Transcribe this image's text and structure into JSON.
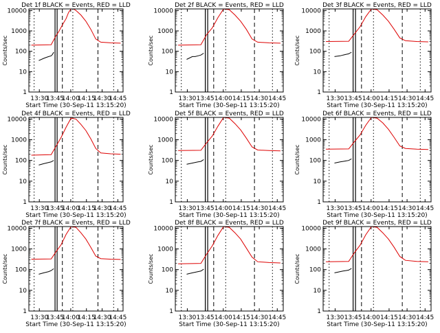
{
  "chart_data": {
    "type": "line",
    "yscale": "log",
    "ylim": [
      1,
      12000
    ],
    "x_units": "minutes after 13:00 UT",
    "xlim": [
      19,
      57
    ],
    "x_tick_values": [
      30,
      45,
      60,
      75,
      90,
      105
    ],
    "x_tick_labels": [
      "13:30",
      "13:45",
      "14:00",
      "14:15",
      "14:30",
      "14:45"
    ],
    "y_tick_values": [
      1,
      10,
      100,
      1000,
      10000
    ],
    "y_tick_labels": [
      "1",
      "10",
      "100",
      "1000",
      "10000"
    ],
    "ylabel": "Counts/sec",
    "xlabel": "Start Time (30-Sep-11 13:15:20)",
    "colors": {
      "events": "#000000",
      "lld": "#dd0000",
      "axes": "#000000"
    },
    "grid": false,
    "markers": {
      "dotted": [
        13,
        36.5,
        54
      ],
      "solid": [
        29.5,
        31.5,
        33
      ],
      "dashed": [
        35,
        46
      ]
    },
    "panels": [
      {
        "title": "Det 1f BLACK = Events, RED = LLD",
        "events": {
          "x": [
            23,
            25,
            26,
            27,
            28,
            28.5,
            29
          ],
          "y": [
            35,
            45,
            50,
            55,
            60,
            70,
            90
          ]
        },
        "lld": {
          "x": [
            20,
            28,
            30,
            31,
            32,
            33,
            34,
            35,
            36,
            37,
            38,
            40,
            42,
            44,
            46,
            48,
            52,
            56
          ],
          "y": [
            200,
            210,
            600,
            900,
            1500,
            2500,
            4000,
            8000,
            12000,
            12000,
            10000,
            6000,
            3000,
            1200,
            400,
            280,
            260,
            250
          ]
        }
      },
      {
        "title": "Det 2f BLACK = Events, RED = LLD",
        "events": {
          "x": [
            23,
            25,
            26,
            27,
            28,
            29
          ],
          "y": [
            40,
            55,
            55,
            60,
            65,
            80
          ]
        },
        "lld": {
          "x": [
            20,
            28,
            30,
            32,
            34,
            36,
            38,
            40,
            42,
            44,
            46,
            48,
            52,
            56
          ],
          "y": [
            200,
            210,
            650,
            1400,
            4500,
            12000,
            11000,
            6000,
            3000,
            1200,
            400,
            280,
            260,
            250
          ]
        }
      },
      {
        "title": "Det 3f BLACK = Events, RED = LLD",
        "events": {
          "x": [
            23,
            25,
            26,
            27,
            28,
            29
          ],
          "y": [
            55,
            60,
            65,
            70,
            75,
            90
          ]
        },
        "lld": {
          "x": [
            20,
            28,
            30,
            32,
            34,
            36,
            38,
            40,
            42,
            44,
            46,
            48,
            52,
            56
          ],
          "y": [
            300,
            310,
            700,
            1600,
            5000,
            12000,
            11000,
            6000,
            3000,
            1200,
            450,
            330,
            300,
            290
          ]
        }
      },
      {
        "title": "Det 4f BLACK = Events, RED = LLD",
        "events": {
          "x": [
            23,
            25,
            26,
            27,
            28,
            29
          ],
          "y": [
            60,
            70,
            75,
            80,
            85,
            100
          ]
        },
        "lld": {
          "x": [
            20,
            28,
            30,
            32,
            34,
            36,
            38,
            40,
            42,
            44,
            46,
            48,
            52,
            56
          ],
          "y": [
            180,
            190,
            500,
            1300,
            4000,
            11000,
            10000,
            5500,
            2800,
            1100,
            380,
            230,
            210,
            200
          ]
        }
      },
      {
        "title": "Det 5f BLACK = Events, RED = LLD",
        "events": {
          "x": [
            23,
            25,
            26,
            27,
            28,
            29
          ],
          "y": [
            65,
            75,
            80,
            85,
            90,
            110
          ]
        },
        "lld": {
          "x": [
            20,
            28,
            30,
            32,
            34,
            36,
            38,
            40,
            42,
            44,
            46,
            48,
            52,
            56
          ],
          "y": [
            300,
            310,
            700,
            1500,
            4500,
            12000,
            11000,
            6000,
            3000,
            1200,
            450,
            320,
            300,
            290
          ]
        }
      },
      {
        "title": "Det 6f BLACK = Events, RED = LLD",
        "events": {
          "x": [
            23,
            25,
            26,
            27,
            28,
            29
          ],
          "y": [
            75,
            85,
            90,
            95,
            100,
            120
          ]
        },
        "lld": {
          "x": [
            20,
            28,
            30,
            32,
            34,
            36,
            38,
            40,
            42,
            44,
            46,
            48,
            52,
            56
          ],
          "y": [
            350,
            360,
            800,
            1700,
            5000,
            12000,
            11000,
            6500,
            3200,
            1300,
            500,
            380,
            350,
            340
          ]
        }
      },
      {
        "title": "Det 7f BLACK = Events, RED = LLD",
        "events": {
          "x": [
            23,
            25,
            26,
            27,
            28,
            29
          ],
          "y": [
            60,
            70,
            75,
            80,
            90,
            110
          ]
        },
        "lld": {
          "x": [
            20,
            28,
            30,
            32,
            34,
            36,
            38,
            40,
            42,
            44,
            46,
            48,
            52,
            56
          ],
          "y": [
            320,
            330,
            750,
            1600,
            5000,
            12000,
            11000,
            6000,
            3000,
            1200,
            450,
            340,
            320,
            310
          ]
        }
      },
      {
        "title": "Det 8f BLACK = Events, RED = LLD",
        "events": {
          "x": [
            23,
            25,
            26,
            27,
            28,
            29
          ],
          "y": [
            60,
            70,
            75,
            80,
            85,
            105
          ]
        },
        "lld": {
          "x": [
            20,
            28,
            30,
            32,
            34,
            36,
            38,
            40,
            42,
            44,
            46,
            48,
            52,
            56
          ],
          "y": [
            190,
            200,
            550,
            1400,
            4500,
            12000,
            11000,
            6000,
            3000,
            1100,
            400,
            240,
            220,
            210
          ]
        }
      },
      {
        "title": "Det 9f BLACK = Events, RED = LLD",
        "events": {
          "x": [
            23,
            25,
            26,
            27,
            28,
            29
          ],
          "y": [
            70,
            80,
            85,
            90,
            95,
            115
          ]
        },
        "lld": {
          "x": [
            20,
            28,
            30,
            32,
            34,
            36,
            38,
            40,
            42,
            44,
            46,
            48,
            52,
            56
          ],
          "y": [
            240,
            250,
            650,
            1500,
            4800,
            12000,
            11000,
            6000,
            3000,
            1200,
            430,
            280,
            250,
            240
          ]
        }
      }
    ]
  }
}
